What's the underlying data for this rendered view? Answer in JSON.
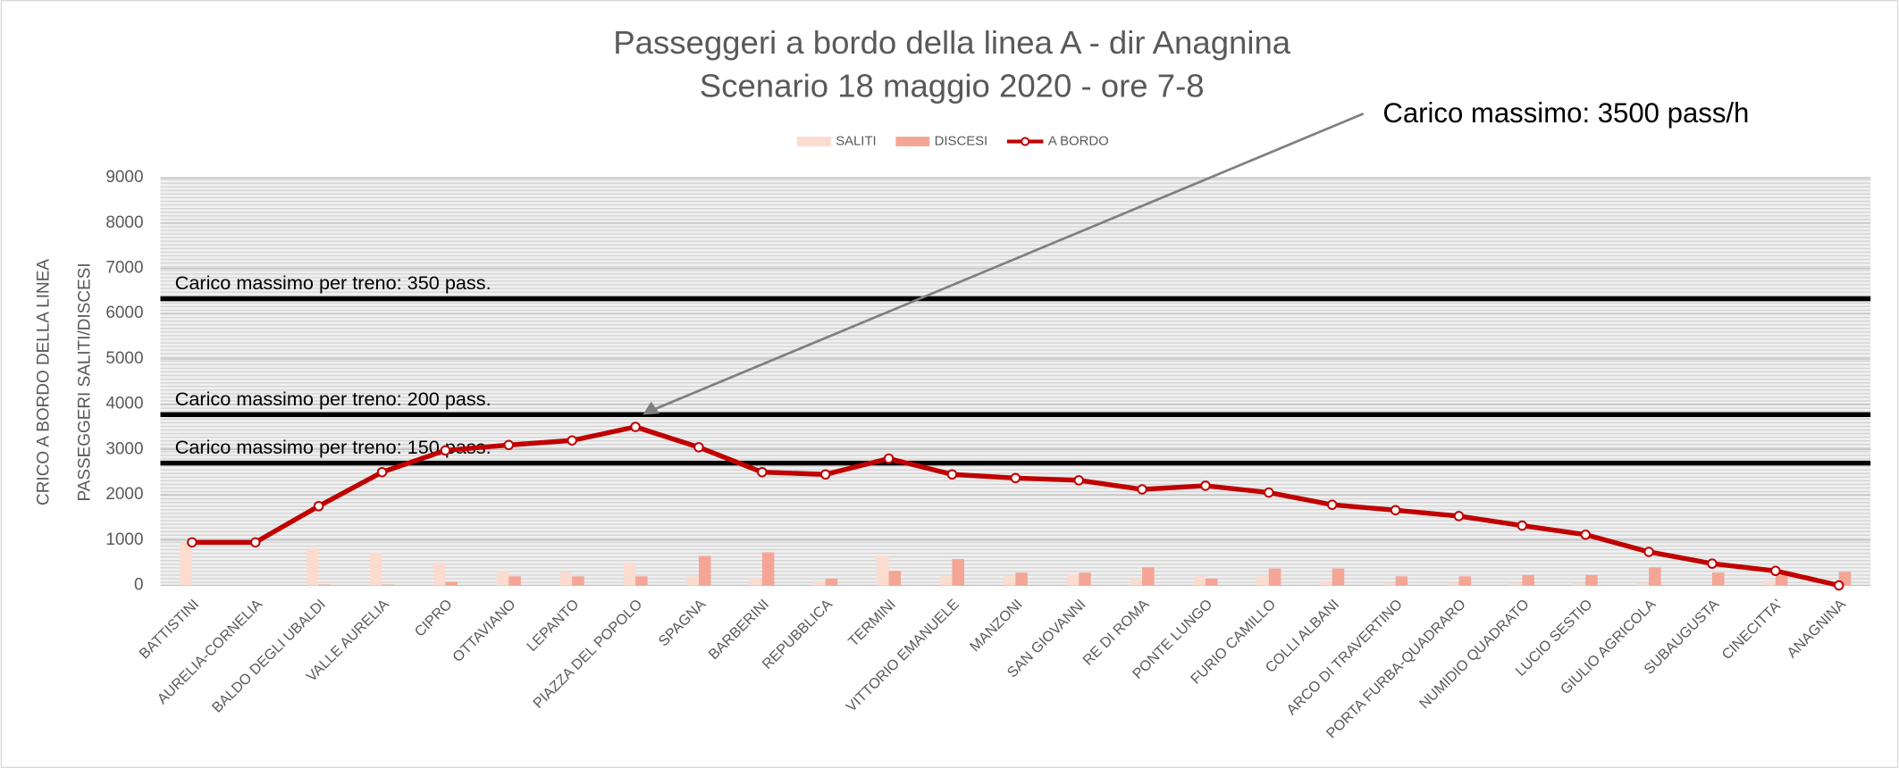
{
  "chart_data": {
    "type": "bar_line",
    "title": [
      "Passeggeri a bordo della linea A - dir Anagnina",
      "Scenario 18 maggio 2020 - ore 7-8"
    ],
    "y_axis_labels": [
      "CRICO A BORDO DELLA LINEA",
      "PASSEGGERI SALITI/DISCESI"
    ],
    "categories": [
      "BATTISTINI",
      "AURELIA-CORNELIA",
      "BALDO DEGLI UBALDI",
      "VALLE AURELIA",
      "CIPRO",
      "OTTAVIANO",
      "LEPANTO",
      "PIAZZA DEL POPOLO",
      "SPAGNA",
      "BARBERINI",
      "REPUBBLICA",
      "TERMINI",
      "VITTORIO EMANUELE",
      "MANZONI",
      "SAN GIOVANNI",
      "RE DI ROMA",
      "PONTE LUNGO",
      "FURIO CAMILLO",
      "COLLI ALBANI",
      "ARCO DI TRAVERTINO",
      "PORTA FURBA-QUADRARO",
      "NUMIDIO QUADRATO",
      "LUCIO SESTIO",
      "GIULIO AGRICOLA",
      "SUBAUGUSTA",
      "CINECITTA'",
      "ANAGNINA"
    ],
    "series": [
      {
        "name": "SALITI",
        "kind": "bar",
        "color": "#fbdccf",
        "values": [
          950,
          0,
          820,
          720,
          500,
          320,
          300,
          500,
          200,
          150,
          100,
          650,
          200,
          200,
          250,
          150,
          200,
          200,
          100,
          50,
          50,
          50,
          50,
          50,
          0,
          100,
          0
        ]
      },
      {
        "name": "DISCESI",
        "kind": "bar",
        "color": "#f4a596",
        "values": [
          0,
          0,
          20,
          20,
          80,
          200,
          200,
          200,
          650,
          730,
          150,
          320,
          580,
          280,
          280,
          400,
          150,
          370,
          370,
          200,
          200,
          230,
          230,
          400,
          280,
          220,
          300
        ]
      },
      {
        "name": "A BORDO",
        "kind": "line",
        "color": "#c00000",
        "values": [
          950,
          950,
          1750,
          2500,
          2980,
          3100,
          3200,
          3500,
          3050,
          2500,
          2450,
          2800,
          2450,
          2370,
          2320,
          2120,
          2200,
          2050,
          1780,
          1660,
          1530,
          1320,
          1120,
          740,
          480,
          320,
          0
        ]
      }
    ],
    "ylim": [
      0,
      9000
    ],
    "yticks": [
      0,
      1000,
      2000,
      3000,
      4000,
      5000,
      6000,
      7000,
      8000,
      9000
    ],
    "grid": true,
    "legend": "top",
    "reference_lines": [
      {
        "label": "Carico massimo per treno: 350 pass.",
        "value": 6330
      },
      {
        "label": "Carico massimo per treno: 200 pass.",
        "value": 3770
      },
      {
        "label": "Carico massimo per treno: 150 pass.",
        "value": 2700
      }
    ],
    "annotation": {
      "text": "Carico massimo: 3500 pass/h",
      "category_index": 7
    }
  }
}
